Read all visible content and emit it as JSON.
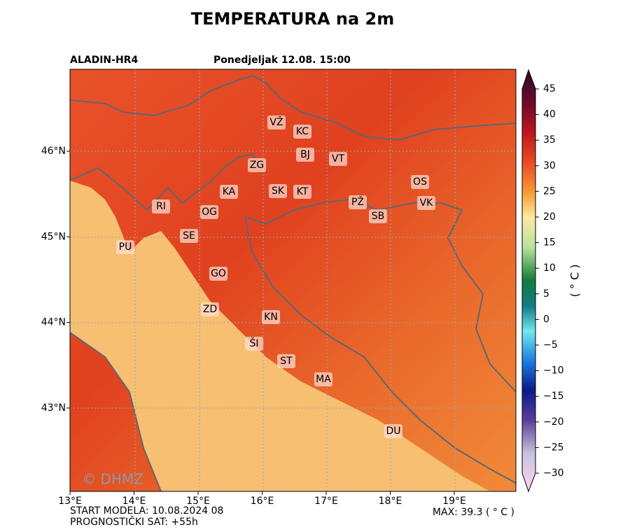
{
  "header": {
    "title": "TEMPERATURA na 2m",
    "model": "ALADIN-HR4",
    "date": "Ponedjeljak 12.08. 15:00"
  },
  "map": {
    "lon_labels": [
      "13°E",
      "14°E",
      "15°E",
      "16°E",
      "17°E",
      "18°E",
      "19°E"
    ],
    "lat_labels": [
      "46°N",
      "45°N",
      "44°N",
      "43°N"
    ],
    "cities": [
      "VŽ",
      "KC",
      "BJ",
      "VT",
      "ZG",
      "OS",
      "KA",
      "SK",
      "KT",
      "PŽ",
      "VK",
      "RI",
      "OG",
      "SB",
      "SE",
      "PU",
      "GO",
      "ZD",
      "KN",
      "ŠI",
      "ST",
      "MA",
      "DU"
    ],
    "watermark": "© DHMZ"
  },
  "colorbar": {
    "ticks": [
      "45",
      "40",
      "35",
      "30",
      "25",
      "20",
      "15",
      "10",
      "5",
      "0",
      "−5",
      "−10",
      "−15",
      "−20",
      "−25",
      "−30"
    ],
    "unit": "( ° C )"
  },
  "footer": {
    "start": "START MODELA: 10.08.2024 08",
    "forecast_hour": "PROGNOSTIČKI SAT: +55h",
    "max": "MAX: 39.3 ( ° C )"
  }
}
